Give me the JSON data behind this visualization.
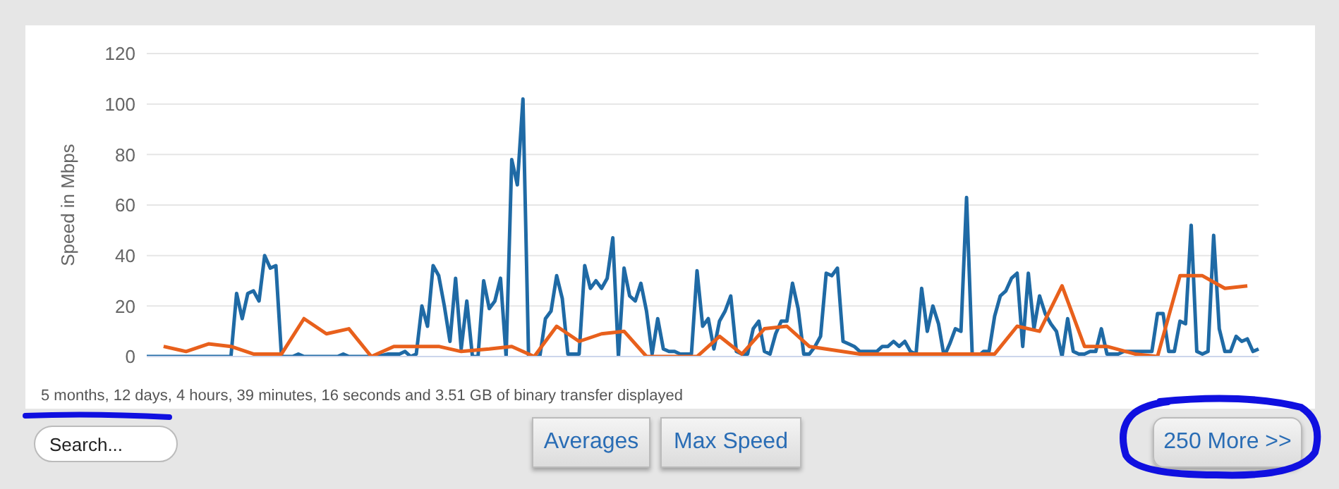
{
  "chart_data": {
    "type": "line",
    "ylabel": "Speed in Mbps",
    "categories": [
      null,
      null,
      null,
      null,
      null,
      null,
      null,
      null,
      null,
      null,
      null,
      null,
      null,
      null,
      null,
      null,
      null,
      null,
      null,
      null,
      null,
      null,
      null,
      null,
      null,
      null,
      null,
      null,
      null,
      null,
      null,
      null,
      null,
      null,
      null,
      null,
      null,
      null,
      null,
      null,
      null,
      null,
      null,
      null,
      null,
      null,
      null,
      null,
      null,
      null,
      null,
      null,
      null,
      null,
      null,
      null,
      null,
      null,
      null,
      null,
      null,
      null,
      null,
      null,
      null,
      null,
      null,
      null,
      null,
      null,
      null,
      null,
      null,
      null,
      null,
      null,
      null,
      null,
      null,
      null,
      null,
      null,
      null,
      null,
      null,
      null,
      null,
      null,
      null,
      null,
      null,
      null,
      null,
      null,
      null,
      null,
      null,
      null,
      null,
      null,
      null,
      null,
      null,
      null,
      null,
      null,
      null,
      null,
      null,
      null,
      null,
      null,
      null,
      null,
      null,
      null,
      null,
      null,
      null,
      null,
      null,
      null,
      null,
      null,
      null,
      null,
      null,
      null,
      null,
      null,
      null,
      null,
      null,
      null,
      null,
      null,
      null,
      null,
      null,
      null,
      null,
      null,
      null,
      null,
      null,
      null,
      null,
      null,
      null,
      null,
      null,
      null,
      null,
      null,
      null,
      null,
      null,
      null,
      null,
      null,
      null,
      null,
      null,
      null,
      null,
      null,
      null,
      null,
      null,
      null,
      null,
      null,
      null,
      null,
      null,
      null,
      null,
      null,
      null,
      null,
      null,
      null,
      null,
      null,
      null,
      null,
      null,
      null,
      null,
      null,
      null,
      null,
      null,
      null,
      null,
      null,
      null,
      null,
      null
    ],
    "ylim": [
      0,
      120
    ],
    "yticks": [
      0,
      20,
      40,
      60,
      80,
      100,
      120
    ],
    "grid": "y",
    "tick_labels": "y",
    "legend": false,
    "marker": "none",
    "line_style": "solid",
    "series": [
      {
        "color": "#1f6aa5",
        "values": [
          0,
          0,
          0,
          0,
          0,
          0,
          0,
          0,
          0,
          0,
          0,
          0,
          0,
          0,
          0,
          0,
          25,
          15,
          25,
          26,
          22,
          40,
          35,
          36,
          0,
          0,
          0,
          1,
          0,
          0,
          0,
          0,
          0,
          0,
          0,
          1,
          0,
          0,
          0,
          0,
          0,
          0,
          0.5,
          1,
          1,
          1,
          2,
          0,
          1,
          20,
          12,
          36,
          32,
          20,
          6,
          31,
          3,
          22,
          0,
          0,
          30,
          19,
          22,
          31,
          0,
          78,
          68,
          102,
          0,
          0,
          0,
          15,
          18,
          32,
          23,
          1,
          1,
          1,
          36,
          27,
          30,
          27,
          31,
          47,
          0,
          35,
          24,
          22,
          29,
          18,
          1,
          15,
          3,
          2,
          2,
          1,
          1,
          1,
          34,
          12,
          15,
          3,
          14,
          18,
          24,
          2,
          1,
          1,
          11,
          14,
          2,
          1,
          9,
          14,
          14,
          29,
          19,
          1,
          1,
          4,
          8,
          33,
          32,
          35,
          6,
          5,
          4,
          2,
          2,
          2,
          2,
          4,
          4,
          6,
          4,
          6,
          2,
          1,
          27,
          10,
          20,
          13,
          0,
          5,
          11,
          10,
          63,
          1,
          0,
          2,
          2,
          16,
          24,
          26,
          31,
          33,
          4,
          33,
          11,
          24,
          17,
          13,
          10,
          0,
          15,
          2,
          1,
          1,
          2,
          2,
          11,
          1,
          1,
          1,
          2,
          2,
          2,
          2,
          2,
          2,
          17,
          17,
          2,
          2,
          14,
          13,
          52,
          2,
          1,
          2,
          48,
          11,
          2,
          2,
          8,
          6,
          7,
          2,
          3
        ]
      },
      {
        "color": "#e8601c",
        "values": [
          null,
          null,
          null,
          4,
          null,
          null,
          null,
          2,
          null,
          null,
          null,
          5,
          null,
          null,
          null,
          4,
          null,
          null,
          null,
          1,
          null,
          null,
          null,
          null,
          1,
          null,
          null,
          null,
          15,
          null,
          null,
          null,
          9,
          null,
          null,
          null,
          11,
          null,
          null,
          null,
          0,
          null,
          null,
          null,
          4,
          null,
          null,
          null,
          null,
          null,
          4,
          null,
          4,
          null,
          null,
          null,
          2,
          null,
          null,
          null,
          null,
          3,
          null,
          null,
          null,
          4,
          null,
          null,
          null,
          0,
          null,
          null,
          null,
          12,
          null,
          null,
          null,
          6,
          null,
          null,
          null,
          9,
          null,
          null,
          null,
          10,
          null,
          null,
          null,
          0,
          null,
          null,
          null,
          null,
          null,
          null,
          null,
          null,
          0,
          null,
          null,
          null,
          8,
          null,
          null,
          null,
          1,
          null,
          null,
          null,
          11,
          null,
          null,
          null,
          12,
          null,
          null,
          null,
          4,
          null,
          null,
          null,
          null,
          null,
          null,
          null,
          null,
          1,
          null,
          null,
          null,
          null,
          null,
          null,
          null,
          1,
          null,
          null,
          null,
          null,
          null,
          null,
          null,
          null,
          null,
          1,
          null,
          null,
          null,
          null,
          null,
          1,
          null,
          null,
          null,
          12,
          null,
          null,
          null,
          10,
          null,
          null,
          null,
          28,
          null,
          null,
          null,
          4,
          null,
          null,
          null,
          4,
          null,
          null,
          null,
          null,
          1,
          null,
          null,
          null,
          0,
          null,
          null,
          null,
          32,
          null,
          null,
          null,
          32,
          null,
          null,
          null,
          27,
          null,
          null,
          null,
          28,
          null,
          null
        ]
      }
    ],
    "annotations": [
      "5 months, 12 days, 4 hours, 39 minutes, 16 seconds and 3.51 GB of binary transfer displayed",
      "Search...",
      "Averages",
      "Max Speed",
      "250 More >>"
    ]
  }
}
